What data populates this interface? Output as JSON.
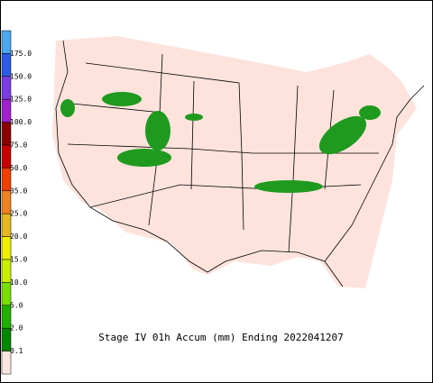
{
  "caption": "Stage IV 01h Accum (mm) Ending 2022041207",
  "legend": {
    "labels": [
      "175.0",
      "150.0",
      "125.0",
      "100.0",
      "75.0",
      "50.0",
      "35.0",
      "25.0",
      "20.0",
      "15.0",
      "10.0",
      "5.0",
      "2.0",
      "0.1"
    ],
    "colors": [
      "#4aa8f0",
      "#2a5ce8",
      "#7a3ce0",
      "#a020d0",
      "#8b0000",
      "#c80000",
      "#f04000",
      "#f08020",
      "#e8b820",
      "#f0f000",
      "#c8f000",
      "#78e000",
      "#20b000",
      "#008800",
      "#fde6e0"
    ]
  }
}
